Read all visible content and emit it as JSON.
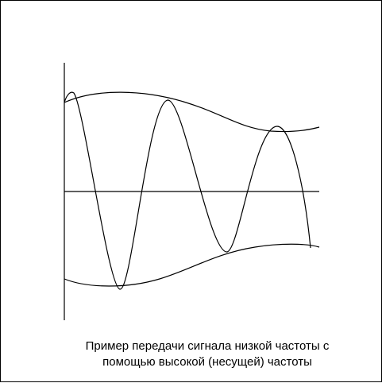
{
  "caption": {
    "line1": "Пример передачи сигнала низкой частоты с",
    "line2": "помощью высокой (несущей) частоты"
  },
  "colors": {
    "stroke": "#000000",
    "background": "#ffffff"
  }
}
